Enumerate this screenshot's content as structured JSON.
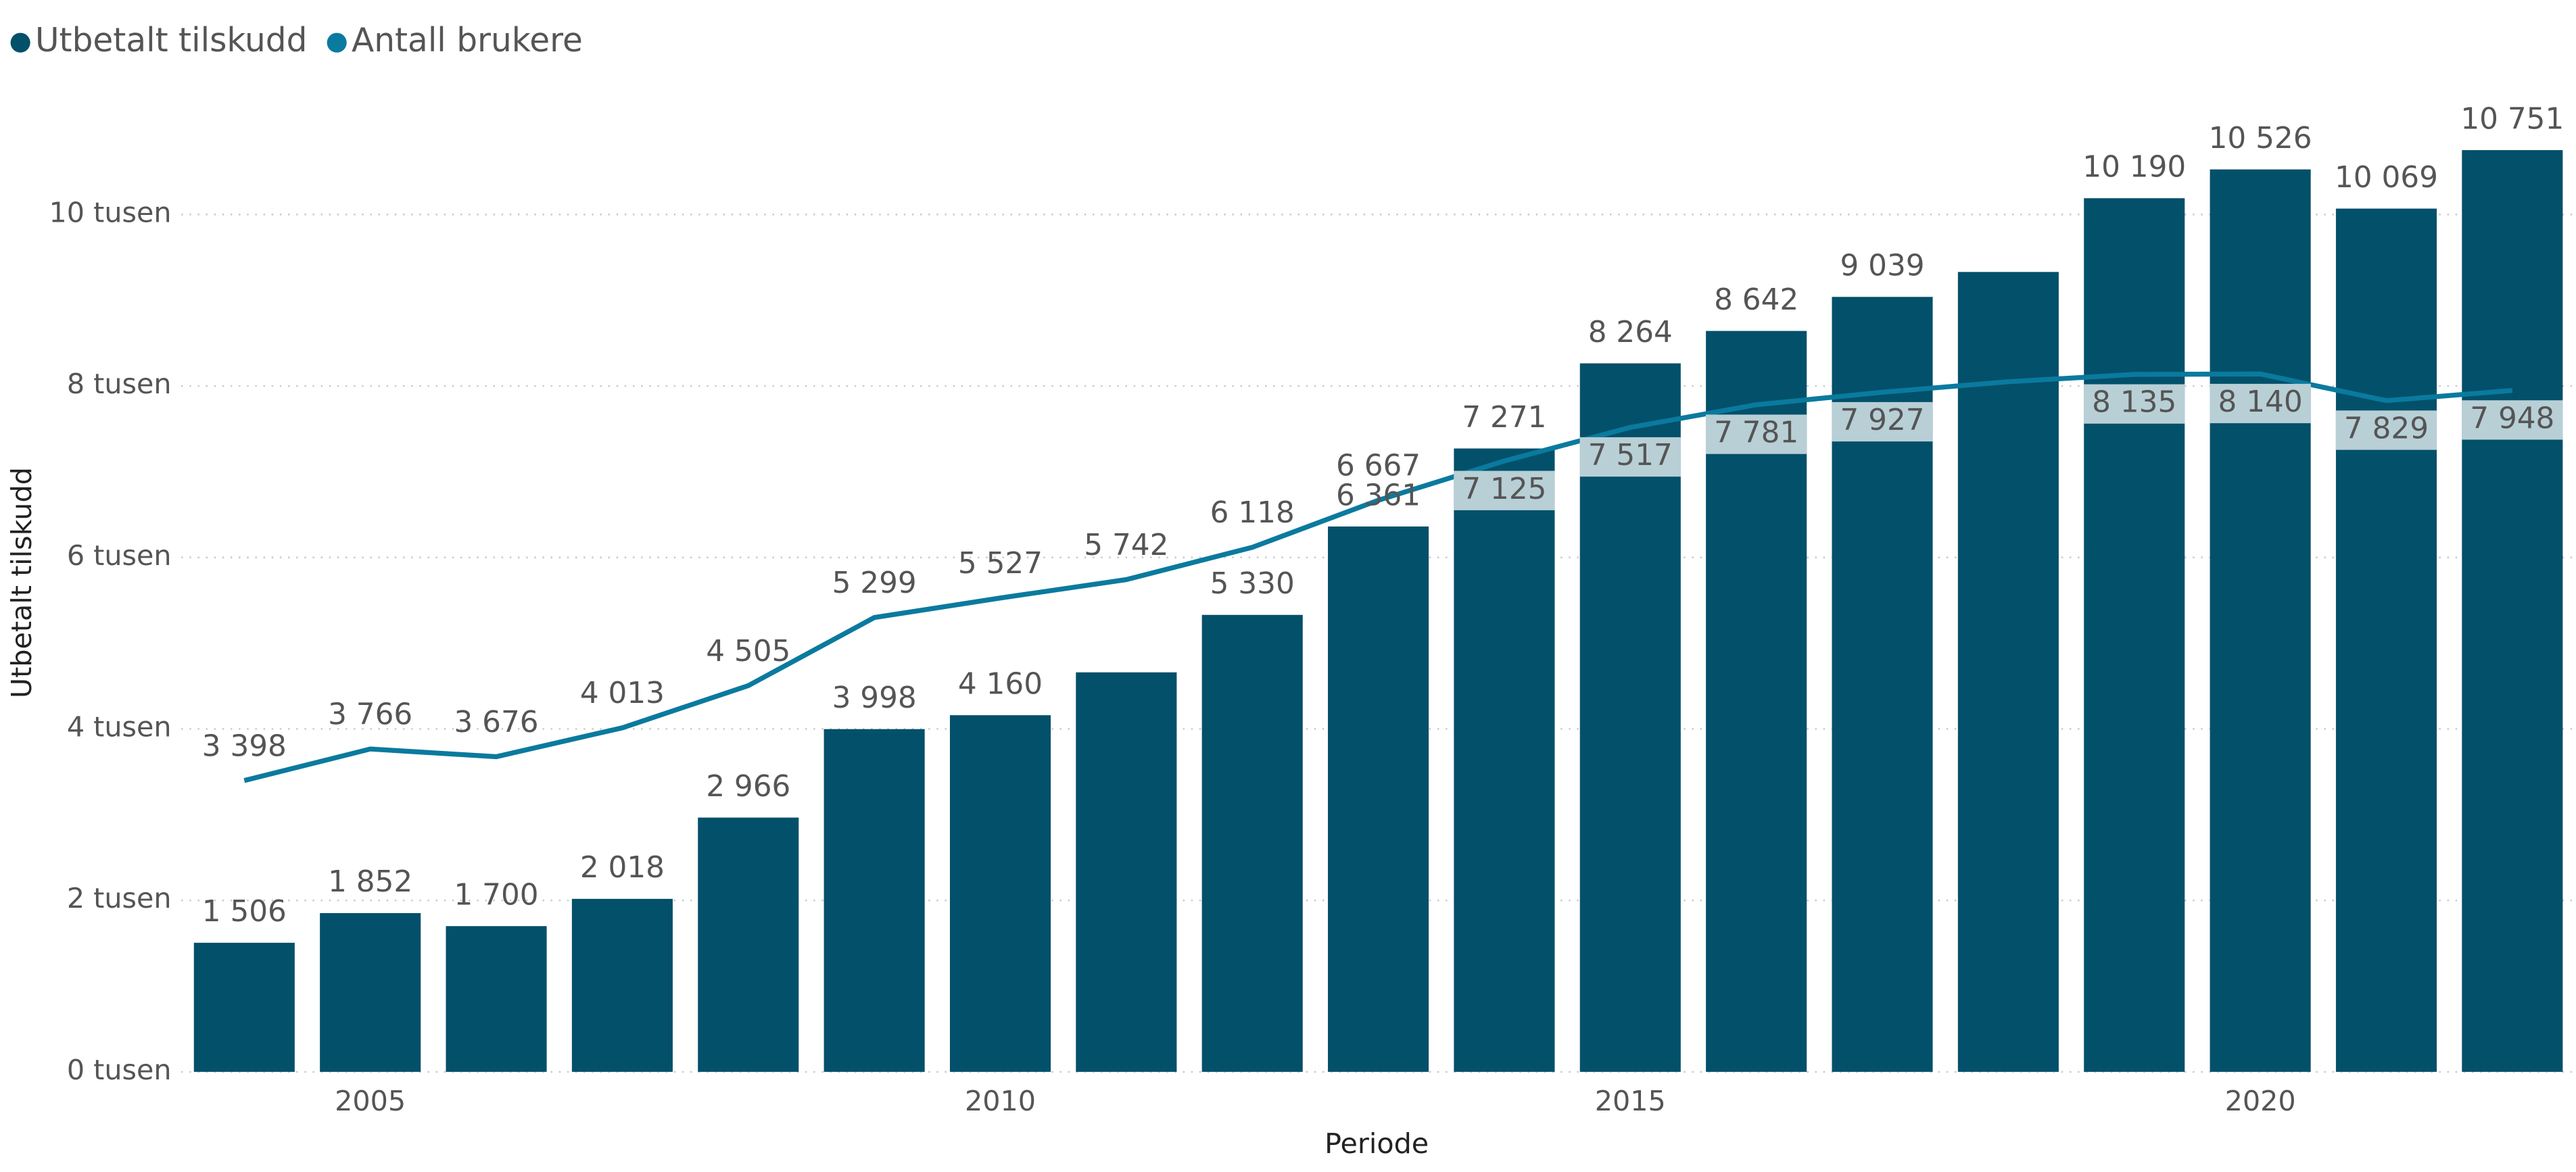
{
  "chart_data": {
    "type": "combo",
    "x_label": "Periode",
    "y_label": "Utbetalt tilskudd",
    "x": [
      2004,
      2005,
      2006,
      2007,
      2008,
      2009,
      2010,
      2011,
      2012,
      2013,
      2014,
      2015,
      2016,
      2017,
      2018,
      2019,
      2020,
      2021,
      2022
    ],
    "xlim": [
      2003.5,
      2022.5
    ],
    "xticks": [
      2005,
      2010,
      2015,
      2020
    ],
    "ylim": [
      0,
      11200
    ],
    "yticks": [
      {
        "value": 0,
        "label": "0 tusen"
      },
      {
        "value": 2000,
        "label": "2 tusen"
      },
      {
        "value": 4000,
        "label": "4 tusen"
      },
      {
        "value": 6000,
        "label": "6 tusen"
      },
      {
        "value": 8000,
        "label": "8 tusen"
      },
      {
        "value": 10000,
        "label": "10 tusen"
      }
    ],
    "grid": true,
    "legend": "top-left",
    "series": [
      {
        "name": "Utbetalt tilskudd",
        "type": "bar",
        "color": "#03506a",
        "values": [
          1506,
          1852,
          1700,
          2018,
          2966,
          3998,
          4160,
          4660,
          5330,
          6361,
          7271,
          8264,
          8642,
          9039,
          9330,
          10190,
          10526,
          10069,
          10751
        ],
        "value_labels": [
          "1 506",
          "1 852",
          "1 700",
          "2 018",
          "2 966",
          "3 998",
          "4 160",
          null,
          "5 330",
          "6 361",
          "7 271",
          "8 264",
          "8 642",
          "9 039",
          null,
          "10 190",
          "10 526",
          "10 069",
          "10 751"
        ]
      },
      {
        "name": "Antall brukere",
        "type": "line",
        "color": "#0a7a9e",
        "values": [
          3398,
          3766,
          3676,
          4013,
          4505,
          5299,
          5527,
          5742,
          6118,
          6667,
          7125,
          7517,
          7781,
          7927,
          8050,
          8135,
          8140,
          7829,
          7948
        ],
        "value_labels": [
          "3 398",
          "3 766",
          "3 676",
          "4 013",
          "4 505",
          "5 299",
          "5 527",
          "5 742",
          "6 118",
          "6 667",
          "7 125",
          "7 517",
          "7 781",
          "7 927",
          null,
          "8 135",
          "8 140",
          "7 829",
          "7 948"
        ]
      }
    ]
  }
}
